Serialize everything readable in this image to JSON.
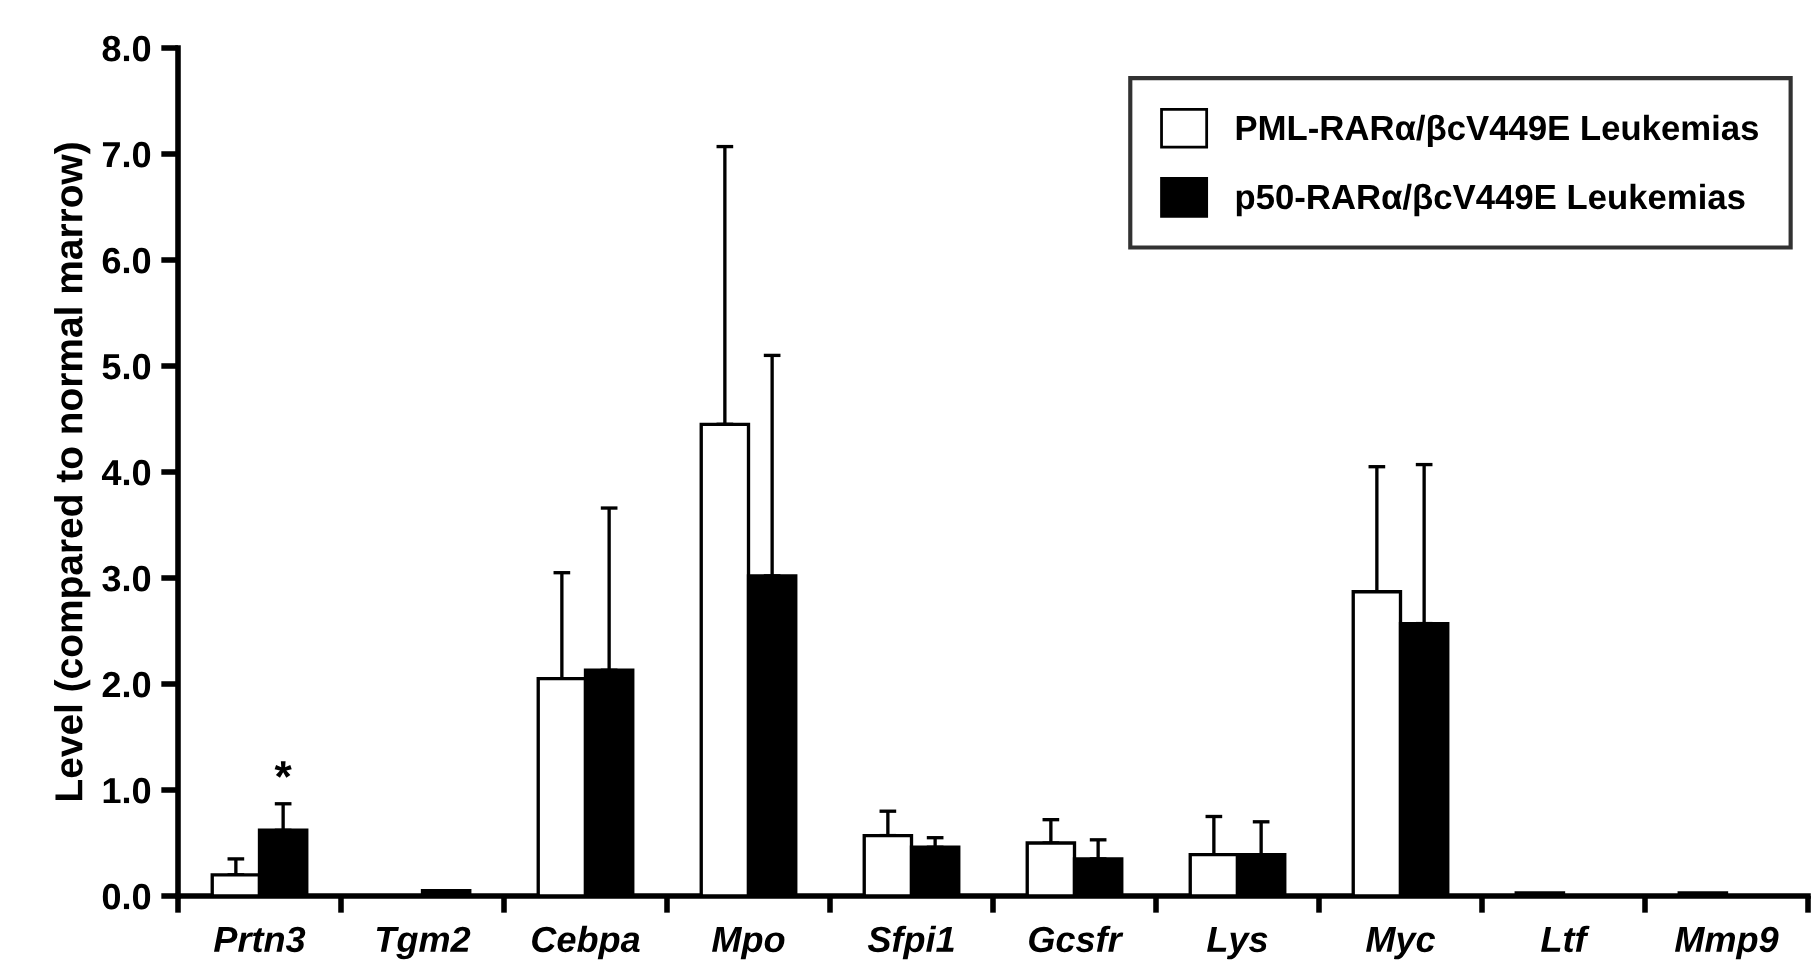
{
  "chart_data": {
    "type": "bar",
    "ylabel": "Level (compared to normal marrow)",
    "categories": [
      "Prtn3",
      "Tgm2",
      "Cebpa",
      "Mpo",
      "Sfpi1",
      "Gcsfr",
      "Lys",
      "Myc",
      "Ltf",
      "Mmp9"
    ],
    "series": [
      {
        "name": "PML-RARα/βcV449E Leukemias",
        "color": "#ffffff",
        "values": [
          0.2,
          null,
          2.05,
          4.45,
          0.57,
          0.5,
          0.39,
          2.87,
          0.03,
          0.03
        ],
        "errors": [
          [
            0.2,
            0.35
          ],
          null,
          [
            2.05,
            3.05
          ],
          [
            4.45,
            7.07
          ],
          [
            0.57,
            0.8
          ],
          [
            0.5,
            0.72
          ],
          [
            0.39,
            0.75
          ],
          [
            2.87,
            4.05
          ],
          null,
          null
        ]
      },
      {
        "name": "p50-RARα/βcV449E Leukemias",
        "color": "#000000",
        "values": [
          0.62,
          0.05,
          2.13,
          3.02,
          0.46,
          0.35,
          0.39,
          2.57,
          null,
          null
        ],
        "errors": [
          [
            0.62,
            0.87
          ],
          null,
          [
            2.13,
            3.66
          ],
          [
            3.02,
            5.1
          ],
          [
            0.46,
            0.55
          ],
          [
            0.35,
            0.53
          ],
          [
            0.39,
            0.7
          ],
          [
            2.57,
            4.07
          ],
          null,
          null
        ]
      }
    ],
    "ylim": [
      0,
      8
    ],
    "yticks": [
      {
        "value": 0,
        "label": "0.0"
      },
      {
        "value": 1,
        "label": "1.0"
      },
      {
        "value": 2,
        "label": "2.0"
      },
      {
        "value": 3,
        "label": "3.0"
      },
      {
        "value": 4,
        "label": "4.0"
      },
      {
        "value": 5,
        "label": "5.0"
      },
      {
        "value": 6,
        "label": "6.0"
      },
      {
        "value": 7,
        "label": "7.0"
      },
      {
        "value": 8,
        "label": "8.0"
      }
    ],
    "annotations": [
      "*"
    ],
    "legend": "top right",
    "grid": false
  }
}
